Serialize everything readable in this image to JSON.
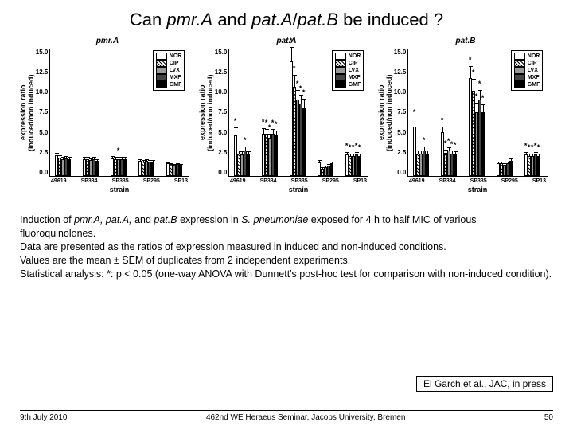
{
  "title_parts": [
    "Can ",
    "pmr.A",
    " and ",
    "pat.A",
    "/",
    "pat.B",
    " be induced ?"
  ],
  "legend": {
    "items": [
      {
        "label": "NOR",
        "fill": "fill-white"
      },
      {
        "label": "CIP",
        "fill": "fill-hatch"
      },
      {
        "label": "LVX",
        "fill": "fill-gray"
      },
      {
        "label": "MXF",
        "fill": "fill-dark"
      },
      {
        "label": "GMF",
        "fill": "fill-black"
      }
    ]
  },
  "axis": {
    "ylabel_l1": "expression ratio",
    "ylabel_l2": "(induced/non induced)",
    "xlabel": "strain",
    "strains": [
      "49619",
      "SP334",
      "SP335",
      "SP295",
      "SP13"
    ],
    "ymax": 15.0,
    "yticks": [
      "15.0",
      "12.5",
      "10.0",
      "7.5",
      "5.0",
      "2.5",
      "0.0"
    ]
  },
  "charts": [
    {
      "title": "pmr.A",
      "data": [
        {
          "vals": [
            2.4,
            2.2,
            2.0,
            2.1,
            2.0
          ],
          "err": [
            0.4,
            0.3,
            0.3,
            0.3,
            0.3
          ],
          "stars": [
            0,
            0,
            0,
            0,
            0
          ]
        },
        {
          "vals": [
            2.0,
            2.0,
            1.9,
            2.0,
            1.8
          ],
          "err": [
            0.3,
            0.3,
            0.3,
            0.3,
            0.3
          ],
          "stars": [
            0,
            0,
            0,
            0,
            0
          ]
        },
        {
          "vals": [
            2.1,
            2.0,
            2.0,
            2.0,
            2.0
          ],
          "err": [
            0.3,
            0.3,
            0.3,
            0.3,
            0.3
          ],
          "stars": [
            0,
            0,
            1,
            0,
            0
          ]
        },
        {
          "vals": [
            1.8,
            1.7,
            1.8,
            1.7,
            1.7
          ],
          "err": [
            0.3,
            0.3,
            0.3,
            0.3,
            0.3
          ],
          "stars": [
            0,
            0,
            0,
            0,
            0
          ]
        },
        {
          "vals": [
            1.5,
            1.4,
            1.3,
            1.4,
            1.3
          ],
          "err": [
            0.2,
            0.2,
            0.2,
            0.2,
            0.2
          ],
          "stars": [
            0,
            0,
            0,
            0,
            0
          ]
        }
      ]
    },
    {
      "title": "pat.A",
      "data": [
        {
          "vals": [
            4.8,
            2.6,
            2.5,
            3.0,
            2.5
          ],
          "err": [
            1.0,
            0.5,
            0.5,
            0.6,
            0.5
          ],
          "stars": [
            1,
            0,
            0,
            1,
            0
          ]
        },
        {
          "vals": [
            5.0,
            5.0,
            4.5,
            5.0,
            4.8
          ],
          "err": [
            0.7,
            0.6,
            0.6,
            0.6,
            0.6
          ],
          "stars": [
            1,
            1,
            1,
            1,
            1
          ]
        },
        {
          "vals": [
            13.5,
            10.5,
            9.0,
            8.5,
            8.0
          ],
          "err": [
            1.8,
            1.5,
            1.2,
            1.2,
            1.2
          ],
          "stars": [
            1,
            1,
            1,
            1,
            1
          ]
        },
        {
          "vals": [
            1.6,
            0.8,
            1.0,
            1.2,
            1.5
          ],
          "err": [
            0.4,
            0.3,
            0.3,
            0.3,
            0.3
          ],
          "stars": [
            0,
            0,
            0,
            0,
            0
          ]
        },
        {
          "vals": [
            2.5,
            2.3,
            2.3,
            2.5,
            2.3
          ],
          "err": [
            0.4,
            0.4,
            0.4,
            0.4,
            0.4
          ],
          "stars": [
            1,
            1,
            1,
            1,
            1
          ]
        }
      ]
    },
    {
      "title": "pat.B",
      "data": [
        {
          "vals": [
            5.8,
            2.6,
            2.6,
            3.0,
            2.6
          ],
          "err": [
            1.0,
            0.5,
            0.5,
            0.6,
            0.5
          ],
          "stars": [
            1,
            0,
            0,
            1,
            0
          ]
        },
        {
          "vals": [
            5.2,
            2.7,
            3.0,
            2.6,
            2.5
          ],
          "err": [
            0.7,
            0.5,
            0.5,
            0.5,
            0.5
          ],
          "stars": [
            1,
            1,
            1,
            1,
            1
          ]
        },
        {
          "vals": [
            11.5,
            10.0,
            7.5,
            9.0,
            7.5
          ],
          "err": [
            1.5,
            1.5,
            1.2,
            1.2,
            1.0
          ],
          "stars": [
            1,
            1,
            1,
            1,
            1
          ]
        },
        {
          "vals": [
            1.5,
            1.5,
            1.3,
            1.5,
            1.8
          ],
          "err": [
            0.3,
            0.3,
            0.3,
            0.3,
            0.4
          ],
          "stars": [
            0,
            0,
            0,
            0,
            0
          ]
        },
        {
          "vals": [
            2.5,
            2.3,
            2.3,
            2.5,
            2.3
          ],
          "err": [
            0.4,
            0.4,
            0.4,
            0.4,
            0.4
          ],
          "stars": [
            1,
            1,
            1,
            1,
            1
          ]
        }
      ]
    }
  ],
  "caption": {
    "l1a": "Induction of ",
    "l1b": "pmr.A, pat.A,",
    "l1c": " and ",
    "l1d": "pat.B",
    "l1e": " expression in ",
    "l1f": "S. pneumoniae",
    "l1g": " exposed for 4 h to half MIC of various fluoroquinolones.",
    "l2": "Data are presented as the ratios of expression measured in induced and non-induced conditions.",
    "l3": "Values are the mean ± SEM of duplicates from 2 independent experiments.",
    "l4": "Statistical analysis: *: p < 0.05 (one-way ANOVA with Dunnett's post-hoc test for comparison with non-induced condition)."
  },
  "ref_a": "El Garch ",
  "ref_b": "et al.",
  "ref_c": ", JAC, in press",
  "footer": {
    "date": "9th July 2010",
    "venue": "462nd WE Heraeus Seminar, Jacobs University, Bremen",
    "page": "50"
  },
  "colors": {
    "text": "#000000",
    "bg": "#ffffff"
  }
}
